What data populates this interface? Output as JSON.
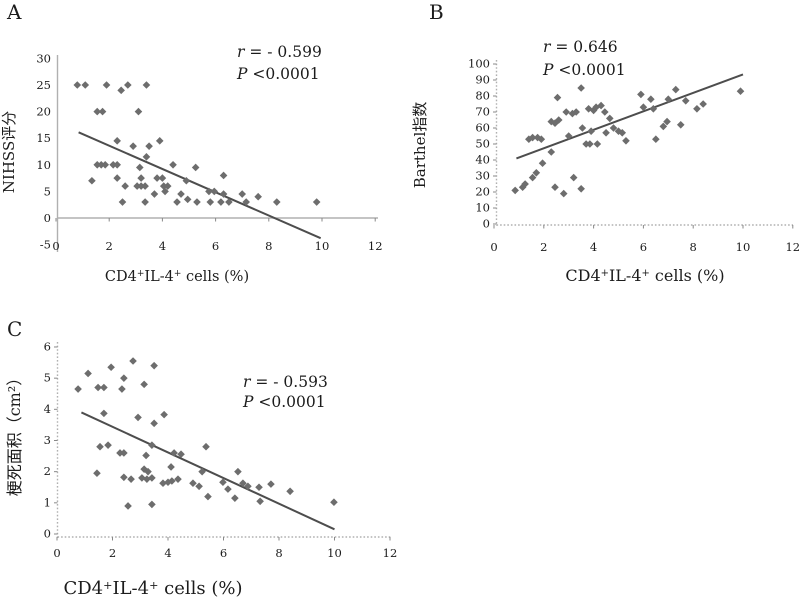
{
  "figure": {
    "colors": {
      "background": "#ffffff",
      "point": "#6d6d6d",
      "trend_line": "#4d4d4d",
      "axis": "#b0b0b0",
      "text": "#1c1c1c"
    }
  },
  "chart_data": [
    {
      "id": "A",
      "panel_label": "A",
      "type": "scatter",
      "xlabel": "CD4+IL-4+ cells (%)",
      "ylabel": "NIHSS评分",
      "xlim": [
        0,
        12
      ],
      "ylim": [
        -5,
        30
      ],
      "xticks": [
        0,
        2,
        4,
        6,
        8,
        10,
        12
      ],
      "yticks": [
        -5,
        0,
        5,
        10,
        15,
        20,
        25,
        30
      ],
      "grid": false,
      "legend": "none",
      "stats": {
        "r": -0.599,
        "p": "<0.0001",
        "r_label": "r",
        "r_display": "= - 0.599",
        "p_label": "P",
        "p_display": "<0.0001"
      },
      "trendline": {
        "x1": 0.85,
        "y1": 16.1,
        "x2": 9.95,
        "y2": -3.8
      },
      "points": [
        [
          0.8,
          25
        ],
        [
          1.1,
          25
        ],
        [
          1.9,
          25
        ],
        [
          2.45,
          24
        ],
        [
          2.7,
          25
        ],
        [
          3.4,
          25
        ],
        [
          1.55,
          20
        ],
        [
          1.75,
          20
        ],
        [
          3.1,
          20
        ],
        [
          2.3,
          14.5
        ],
        [
          2.9,
          13.5
        ],
        [
          3.5,
          13.5
        ],
        [
          3.9,
          14.5
        ],
        [
          3.4,
          11.5
        ],
        [
          1.55,
          10
        ],
        [
          1.7,
          10
        ],
        [
          1.85,
          10
        ],
        [
          2.15,
          10
        ],
        [
          2.3,
          10
        ],
        [
          3.15,
          9.5
        ],
        [
          4.4,
          10
        ],
        [
          5.25,
          9.5
        ],
        [
          2.3,
          7.5
        ],
        [
          3.2,
          7.5
        ],
        [
          3.8,
          7.5
        ],
        [
          4.0,
          7.5
        ],
        [
          6.3,
          8
        ],
        [
          1.35,
          7
        ],
        [
          4.9,
          7
        ],
        [
          2.6,
          6
        ],
        [
          3.05,
          6
        ],
        [
          3.2,
          6
        ],
        [
          3.35,
          6
        ],
        [
          4.05,
          6
        ],
        [
          4.2,
          6
        ],
        [
          3.7,
          4.5
        ],
        [
          4.1,
          5
        ],
        [
          4.7,
          4.5
        ],
        [
          5.75,
          5
        ],
        [
          5.95,
          5
        ],
        [
          6.3,
          4.5
        ],
        [
          7.0,
          4.5
        ],
        [
          4.95,
          3.5
        ],
        [
          7.6,
          4
        ],
        [
          2.5,
          3
        ],
        [
          3.35,
          3
        ],
        [
          4.55,
          3
        ],
        [
          5.3,
          3
        ],
        [
          5.8,
          3
        ],
        [
          6.2,
          3
        ],
        [
          6.5,
          3
        ],
        [
          7.15,
          3
        ],
        [
          8.3,
          3
        ],
        [
          9.8,
          3
        ]
      ]
    },
    {
      "id": "B",
      "panel_label": "B",
      "type": "scatter",
      "xlabel": "CD4+IL-4+ cells (%)",
      "ylabel": "Barthel指数",
      "xlim": [
        0,
        12
      ],
      "ylim": [
        0,
        100
      ],
      "xticks": [
        0,
        2,
        4,
        6,
        8,
        10,
        12
      ],
      "yticks": [
        0,
        10,
        20,
        30,
        40,
        50,
        60,
        70,
        80,
        90,
        100
      ],
      "grid": false,
      "legend": "none",
      "stats": {
        "r": 0.646,
        "p": "<0.0001",
        "r_label": "r",
        "r_display": "=  0.646",
        "p_label": "P",
        "p_display": "<0.0001"
      },
      "trendline": {
        "x1": 0.9,
        "y1": 41,
        "x2": 10.0,
        "y2": 93.5
      },
      "points": [
        [
          0.85,
          21
        ],
        [
          1.15,
          23
        ],
        [
          1.25,
          25
        ],
        [
          1.55,
          29
        ],
        [
          1.7,
          32
        ],
        [
          1.95,
          38
        ],
        [
          1.4,
          53
        ],
        [
          1.55,
          54
        ],
        [
          1.75,
          54
        ],
        [
          1.9,
          53
        ],
        [
          2.3,
          45
        ],
        [
          2.3,
          64
        ],
        [
          2.45,
          63
        ],
        [
          2.45,
          23
        ],
        [
          2.55,
          79
        ],
        [
          2.6,
          65
        ],
        [
          2.8,
          19
        ],
        [
          2.9,
          70
        ],
        [
          3.0,
          55
        ],
        [
          3.15,
          69
        ],
        [
          3.2,
          29
        ],
        [
          3.3,
          70
        ],
        [
          3.5,
          85
        ],
        [
          3.5,
          22
        ],
        [
          3.55,
          60
        ],
        [
          3.7,
          50
        ],
        [
          3.8,
          72
        ],
        [
          3.85,
          50
        ],
        [
          3.9,
          58
        ],
        [
          4.0,
          71
        ],
        [
          4.1,
          73
        ],
        [
          4.15,
          50
        ],
        [
          4.3,
          74
        ],
        [
          4.45,
          70
        ],
        [
          4.5,
          57
        ],
        [
          4.65,
          66
        ],
        [
          4.8,
          60
        ],
        [
          5.0,
          58
        ],
        [
          5.15,
          57
        ],
        [
          5.3,
          52
        ],
        [
          5.9,
          81
        ],
        [
          6.0,
          73
        ],
        [
          6.3,
          78
        ],
        [
          6.4,
          72
        ],
        [
          6.5,
          53
        ],
        [
          6.8,
          61
        ],
        [
          6.95,
          64
        ],
        [
          7.0,
          78
        ],
        [
          7.3,
          84
        ],
        [
          7.5,
          62
        ],
        [
          7.7,
          77
        ],
        [
          8.15,
          72
        ],
        [
          8.4,
          75
        ],
        [
          9.9,
          83
        ]
      ]
    },
    {
      "id": "C",
      "panel_label": "C",
      "type": "scatter",
      "xlabel": "CD4+IL-4+ cells (%)",
      "ylabel": "梗死面积（cm²）",
      "xlim": [
        0,
        12
      ],
      "ylim": [
        0,
        6
      ],
      "xticks": [
        0,
        2,
        4,
        6,
        8,
        10,
        12
      ],
      "yticks": [
        0,
        1,
        2,
        3,
        4,
        5,
        6
      ],
      "grid": false,
      "legend": "none",
      "stats": {
        "r": -0.593,
        "p": "<0.0001",
        "r_label": "r",
        "r_display": "= - 0.593",
        "p_label": "P",
        "p_display": "<0.0001"
      },
      "trendline": {
        "x1": 0.88,
        "y1": 3.9,
        "x2": 10.0,
        "y2": 0.15
      },
      "points": [
        [
          0.76,
          4.65
        ],
        [
          1.12,
          5.15
        ],
        [
          1.48,
          4.7
        ],
        [
          1.69,
          4.7
        ],
        [
          1.95,
          5.35
        ],
        [
          2.34,
          4.65
        ],
        [
          2.41,
          5.0
        ],
        [
          2.74,
          5.55
        ],
        [
          3.14,
          4.8
        ],
        [
          3.5,
          5.4
        ],
        [
          1.69,
          3.87
        ],
        [
          2.92,
          3.74
        ],
        [
          3.5,
          3.55
        ],
        [
          3.86,
          3.83
        ],
        [
          1.55,
          2.8
        ],
        [
          1.84,
          2.85
        ],
        [
          2.27,
          2.6
        ],
        [
          2.41,
          2.6
        ],
        [
          3.21,
          2.52
        ],
        [
          3.42,
          2.85
        ],
        [
          4.22,
          2.6
        ],
        [
          4.47,
          2.56
        ],
        [
          5.37,
          2.8
        ],
        [
          1.44,
          1.95
        ],
        [
          2.41,
          1.82
        ],
        [
          2.67,
          1.76
        ],
        [
          3.06,
          1.8
        ],
        [
          3.14,
          2.08
        ],
        [
          3.24,
          1.76
        ],
        [
          3.28,
          2.0
        ],
        [
          3.42,
          1.8
        ],
        [
          3.82,
          1.63
        ],
        [
          4.0,
          1.66
        ],
        [
          4.11,
          2.15
        ],
        [
          4.14,
          1.7
        ],
        [
          4.36,
          1.76
        ],
        [
          4.9,
          1.63
        ],
        [
          5.12,
          1.53
        ],
        [
          5.23,
          2.0
        ],
        [
          5.44,
          1.2
        ],
        [
          5.98,
          1.66
        ],
        [
          6.16,
          1.44
        ],
        [
          6.41,
          1.15
        ],
        [
          6.52,
          2.0
        ],
        [
          6.7,
          1.63
        ],
        [
          6.88,
          1.53
        ],
        [
          7.28,
          1.5
        ],
        [
          7.32,
          1.05
        ],
        [
          7.71,
          1.6
        ],
        [
          8.4,
          1.37
        ],
        [
          9.98,
          1.02
        ],
        [
          2.56,
          0.9
        ],
        [
          3.42,
          0.95
        ]
      ]
    }
  ]
}
